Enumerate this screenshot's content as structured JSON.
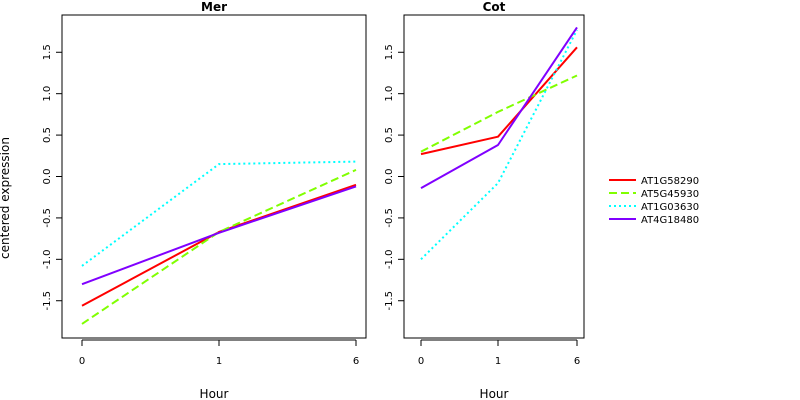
{
  "figure": {
    "ylabel": "centered expression"
  },
  "chart_data": [
    {
      "type": "line",
      "title": "Mer",
      "xlabel": "Hour",
      "ylabel": "centered expression",
      "categories": [
        "0",
        "1",
        "6"
      ],
      "ylim": [
        -1.95,
        1.95
      ],
      "yticks": [
        "-1.5",
        "-1.0",
        "-0.5",
        "0.0",
        "0.5",
        "1.0",
        "1.5"
      ],
      "grid": false,
      "series": [
        {
          "name": "AT1G58290",
          "color": "#ff0000",
          "dash": "solid",
          "values": [
            -1.56,
            -0.67,
            -0.1
          ]
        },
        {
          "name": "AT5G45930",
          "color": "#80ff00",
          "dash": "dashed",
          "values": [
            -1.78,
            -0.67,
            0.08
          ]
        },
        {
          "name": "AT1G03630",
          "color": "#00ffff",
          "dash": "dotted",
          "values": [
            -1.08,
            0.15,
            0.18
          ]
        },
        {
          "name": "AT4G18480",
          "color": "#8000ff",
          "dash": "solid",
          "values": [
            -1.3,
            -0.68,
            -0.12
          ]
        }
      ]
    },
    {
      "type": "line",
      "title": "Cot",
      "xlabel": "Hour",
      "categories": [
        "0",
        "1",
        "6"
      ],
      "ylim": [
        -1.95,
        1.95
      ],
      "yticks": [
        "-1.5",
        "-1.0",
        "-0.5",
        "0.0",
        "0.5",
        "1.0",
        "1.5"
      ],
      "grid": false,
      "series": [
        {
          "name": "AT1G58290",
          "color": "#ff0000",
          "dash": "solid",
          "values": [
            0.27,
            0.48,
            1.56
          ]
        },
        {
          "name": "AT5G45930",
          "color": "#80ff00",
          "dash": "dashed",
          "values": [
            0.3,
            0.78,
            1.22
          ]
        },
        {
          "name": "AT1G03630",
          "color": "#00ffff",
          "dash": "dotted",
          "values": [
            -1.0,
            -0.08,
            1.77
          ]
        },
        {
          "name": "AT4G18480",
          "color": "#8000ff",
          "dash": "solid",
          "values": [
            -0.14,
            0.38,
            1.8
          ]
        }
      ]
    }
  ],
  "legend": {
    "placement": "right",
    "items": [
      {
        "label": "AT1G58290",
        "color": "#ff0000",
        "dash": "solid"
      },
      {
        "label": "AT5G45930",
        "color": "#80ff00",
        "dash": "dashed"
      },
      {
        "label": "AT1G03630",
        "color": "#00ffff",
        "dash": "dotted"
      },
      {
        "label": "AT4G18480",
        "color": "#8000ff",
        "dash": "solid"
      }
    ]
  }
}
